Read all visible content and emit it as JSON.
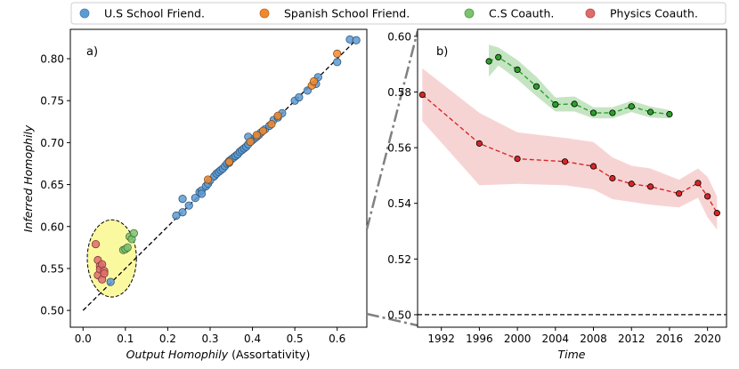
{
  "legend": {
    "entries": [
      {
        "label": "U.S School Friend.",
        "color": "#5b9bd5"
      },
      {
        "label": "Spanish School Friend.",
        "color": "#f0882e"
      },
      {
        "label": "C.S Coauth.",
        "color": "#7bc36d"
      },
      {
        "label": "Physics Coauth.",
        "color": "#e06b6b"
      }
    ]
  },
  "chart_data": [
    {
      "type": "scatter",
      "panel_label": "a)",
      "xlabel_italic": "Output Homophily",
      "xlabel_rest": " (Assortativity)",
      "ylabel": "Inferred Homophily",
      "xlim": [
        -0.03,
        0.67
      ],
      "ylim": [
        0.48,
        0.835
      ],
      "xticks": [
        0.0,
        0.1,
        0.2,
        0.3,
        0.4,
        0.5,
        0.6
      ],
      "xtick_labels": [
        "0.0",
        "0.1",
        "0.2",
        "0.3",
        "0.4",
        "0.5",
        "0.6"
      ],
      "yticks": [
        0.5,
        0.55,
        0.6,
        0.65,
        0.7,
        0.75,
        0.8
      ],
      "ytick_labels": [
        "0.50",
        "0.55",
        "0.60",
        "0.65",
        "0.70",
        "0.75",
        "0.80"
      ],
      "reference_line": {
        "from": [
          0.0,
          0.5
        ],
        "to": [
          0.64,
          0.82
        ]
      },
      "highlight_ellipse": {
        "cx": 0.068,
        "cy": 0.562,
        "rx": 0.058,
        "ry": 0.046,
        "color": "#fbf9a0"
      },
      "series": [
        {
          "name": "U.S School Friend.",
          "color": "#5b9bd5",
          "points": [
            [
              0.065,
              0.534
            ],
            [
              0.22,
              0.613
            ],
            [
              0.235,
              0.617
            ],
            [
              0.235,
              0.633
            ],
            [
              0.25,
              0.625
            ],
            [
              0.265,
              0.634
            ],
            [
              0.275,
              0.641
            ],
            [
              0.28,
              0.643
            ],
            [
              0.29,
              0.648
            ],
            [
              0.295,
              0.651
            ],
            [
              0.3,
              0.655
            ],
            [
              0.31,
              0.66
            ],
            [
              0.315,
              0.663
            ],
            [
              0.32,
              0.665
            ],
            [
              0.325,
              0.667
            ],
            [
              0.33,
              0.669
            ],
            [
              0.335,
              0.672
            ],
            [
              0.34,
              0.675
            ],
            [
              0.345,
              0.678
            ],
            [
              0.35,
              0.68
            ],
            [
              0.355,
              0.682
            ],
            [
              0.36,
              0.684
            ],
            [
              0.365,
              0.686
            ],
            [
              0.37,
              0.689
            ],
            [
              0.375,
              0.691
            ],
            [
              0.38,
              0.693
            ],
            [
              0.385,
              0.695
            ],
            [
              0.39,
              0.698
            ],
            [
              0.395,
              0.701
            ],
            [
              0.4,
              0.703
            ],
            [
              0.405,
              0.705
            ],
            [
              0.41,
              0.707
            ],
            [
              0.415,
              0.709
            ],
            [
              0.42,
              0.712
            ],
            [
              0.43,
              0.716
            ],
            [
              0.44,
              0.72
            ],
            [
              0.45,
              0.727
            ],
            [
              0.46,
              0.73
            ],
            [
              0.47,
              0.735
            ],
            [
              0.5,
              0.75
            ],
            [
              0.51,
              0.754
            ],
            [
              0.53,
              0.762
            ],
            [
              0.55,
              0.77
            ],
            [
              0.555,
              0.778
            ],
            [
              0.6,
              0.796
            ],
            [
              0.63,
              0.823
            ],
            [
              0.645,
              0.822
            ],
            [
              0.39,
              0.707
            ],
            [
              0.345,
              0.676
            ],
            [
              0.28,
              0.639
            ]
          ]
        },
        {
          "name": "Spanish School Friend.",
          "color": "#f0882e",
          "points": [
            [
              0.295,
              0.656
            ],
            [
              0.345,
              0.677
            ],
            [
              0.395,
              0.701
            ],
            [
              0.41,
              0.709
            ],
            [
              0.425,
              0.714
            ],
            [
              0.445,
              0.722
            ],
            [
              0.46,
              0.732
            ],
            [
              0.54,
              0.768
            ],
            [
              0.545,
              0.773
            ],
            [
              0.6,
              0.806
            ]
          ]
        },
        {
          "name": "C.S Coauth.",
          "color": "#7bc36d",
          "points": [
            [
              0.095,
              0.572
            ],
            [
              0.1,
              0.573
            ],
            [
              0.105,
              0.575
            ],
            [
              0.11,
              0.588
            ],
            [
              0.115,
              0.585
            ],
            [
              0.12,
              0.592
            ]
          ]
        },
        {
          "name": "Physics Coauth.",
          "color": "#e06b6b",
          "points": [
            [
              0.03,
              0.579
            ],
            [
              0.035,
              0.56
            ],
            [
              0.035,
              0.542
            ],
            [
              0.04,
              0.553
            ],
            [
              0.04,
              0.549
            ],
            [
              0.045,
              0.537
            ],
            [
              0.045,
              0.555
            ],
            [
              0.05,
              0.547
            ],
            [
              0.05,
              0.544
            ]
          ]
        }
      ]
    },
    {
      "type": "line",
      "panel_label": "b)",
      "xlabel": "Time",
      "xlim": [
        1989.5,
        2022
      ],
      "ylim": [
        0.4955,
        0.6025
      ],
      "xticks": [
        1992,
        1996,
        2000,
        2004,
        2008,
        2012,
        2016,
        2020
      ],
      "xtick_labels": [
        "1992",
        "1996",
        "2000",
        "2004",
        "2008",
        "2012",
        "2016",
        "2020"
      ],
      "yticks": [
        0.5,
        0.52,
        0.54,
        0.56,
        0.58,
        0.6
      ],
      "ytick_labels": [
        "0.50",
        "0.52",
        "0.54",
        "0.56",
        "0.58",
        "0.60"
      ],
      "baseline": 0.5,
      "series": [
        {
          "name": "C.S Coauth.",
          "color": "#2ca02c",
          "fill": "#9fd49a",
          "x": [
            1997,
            1998,
            2000,
            2002,
            2004,
            2006,
            2008,
            2010,
            2012,
            2014,
            2016
          ],
          "y": [
            0.591,
            0.5925,
            0.588,
            0.582,
            0.5755,
            0.5757,
            0.5725,
            0.5725,
            0.5748,
            0.5728,
            0.572
          ],
          "lower": [
            0.5855,
            0.5895,
            0.5845,
            0.5785,
            0.573,
            0.573,
            0.5705,
            0.5705,
            0.5728,
            0.5708,
            0.5705
          ],
          "upper": [
            0.597,
            0.596,
            0.5915,
            0.5855,
            0.578,
            0.5784,
            0.5745,
            0.5745,
            0.5768,
            0.5748,
            0.5735
          ]
        },
        {
          "name": "Physics Coauth.",
          "color": "#d62728",
          "fill": "#f2b8b8",
          "x": [
            1990,
            1996,
            2000,
            2005,
            2008,
            2010,
            2012,
            2014,
            2017,
            2019,
            2020,
            2021
          ],
          "y": [
            0.579,
            0.5615,
            0.556,
            0.555,
            0.5533,
            0.549,
            0.547,
            0.546,
            0.5435,
            0.5473,
            0.5425,
            0.5365
          ],
          "lower": [
            0.5695,
            0.5465,
            0.547,
            0.5465,
            0.545,
            0.5415,
            0.5405,
            0.5395,
            0.5385,
            0.542,
            0.535,
            0.5305
          ],
          "upper": [
            0.5885,
            0.5725,
            0.5655,
            0.5635,
            0.562,
            0.5565,
            0.5535,
            0.5525,
            0.5485,
            0.5525,
            0.5495,
            0.5425
          ]
        }
      ]
    }
  ]
}
